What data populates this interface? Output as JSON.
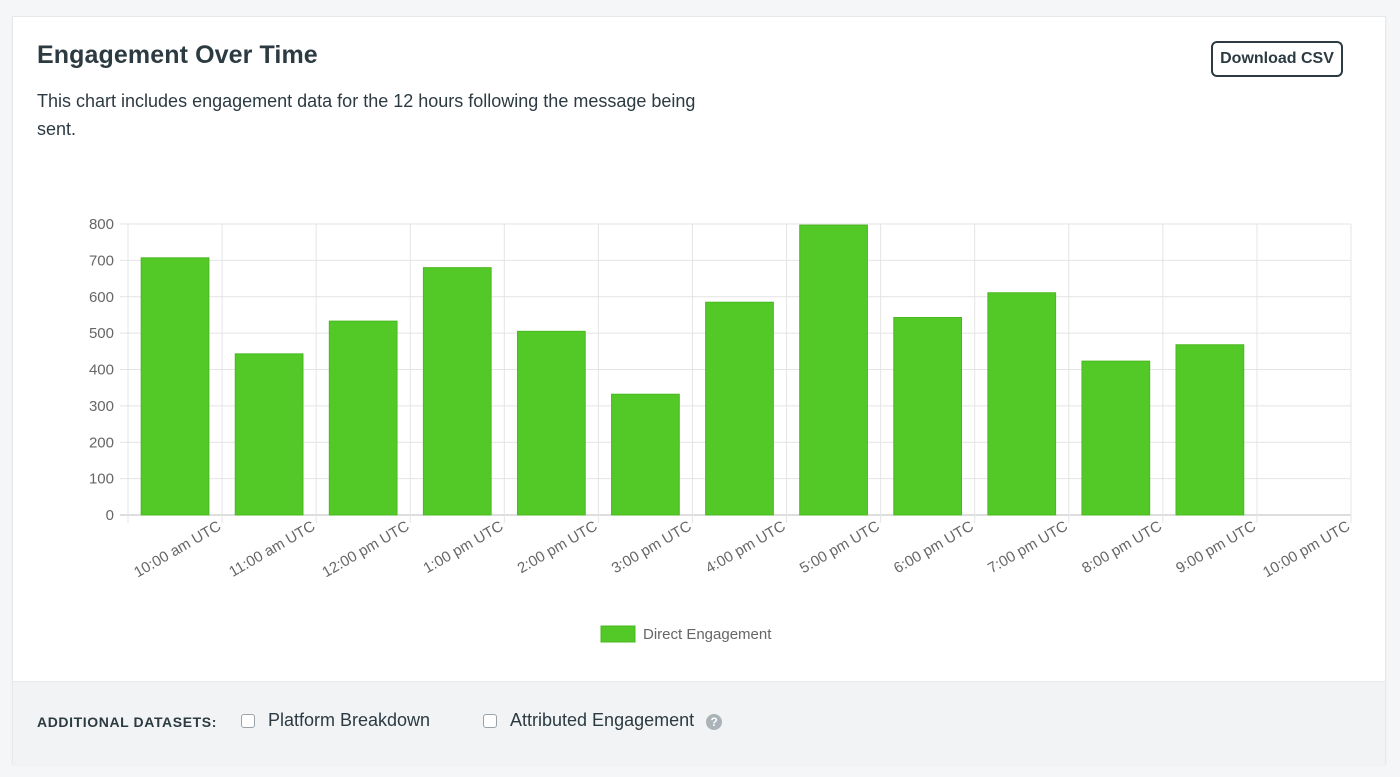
{
  "header": {
    "title": "Engagement Over Time",
    "subtitle": "This chart includes engagement data for the 12 hours following the message being sent.",
    "download_label": "Download CSV"
  },
  "footer": {
    "label": "ADDITIONAL DATASETS:",
    "options": [
      {
        "label": "Platform Breakdown",
        "checked": false
      },
      {
        "label": "Attributed Engagement",
        "checked": false
      }
    ],
    "help_icon": "question-circle-icon"
  },
  "colors": {
    "bar": "#53c927",
    "grid": "#e4e4e4",
    "axis_text": "#666666"
  },
  "chart_data": {
    "type": "bar",
    "categories": [
      "10:00 am UTC",
      "11:00 am UTC",
      "12:00 pm UTC",
      "1:00 pm UTC",
      "2:00 pm UTC",
      "3:00 pm UTC",
      "4:00 pm UTC",
      "5:00 pm UTC",
      "6:00 pm UTC",
      "7:00 pm UTC",
      "8:00 pm UTC",
      "9:00 pm UTC",
      "10:00 pm UTC"
    ],
    "series": [
      {
        "name": "Direct Engagement",
        "values": [
          707,
          443,
          533,
          680,
          505,
          332,
          585,
          797,
          543,
          611,
          423,
          468,
          null
        ]
      }
    ],
    "yticks": [
      0,
      100,
      200,
      300,
      400,
      500,
      600,
      700,
      800
    ],
    "ylim": [
      0,
      800
    ],
    "grid": true,
    "legend_position": "bottom"
  }
}
